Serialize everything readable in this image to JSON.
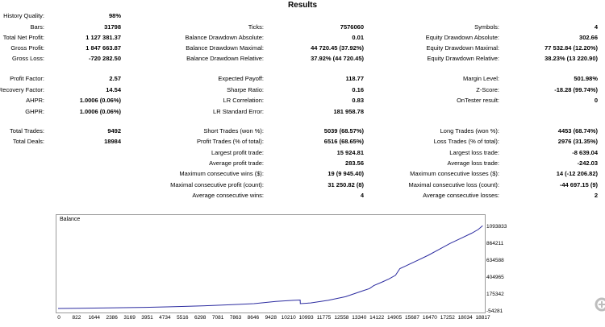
{
  "title": "Results",
  "stats": [
    {
      "label": "History Quality:",
      "value": "98%"
    },
    {
      "label": "Bars:",
      "value": "31798"
    },
    {
      "label": "Ticks:",
      "value": "7576060"
    },
    {
      "label": "Symbols:",
      "value": "4"
    },
    {
      "label": "Total Net Profit:",
      "value": "1 127 381.37"
    },
    {
      "label": "Balance Drawdown Absolute:",
      "value": "0.01"
    },
    {
      "label": "Equity Drawdown Absolute:",
      "value": "302.66"
    },
    {
      "label": "Gross Profit:",
      "value": "1 847 663.87"
    },
    {
      "label": "Balance Drawdown Maximal:",
      "value": "44 720.45 (37.92%)"
    },
    {
      "label": "Equity Drawdown Maximal:",
      "value": "77 532.84 (12.20%)"
    },
    {
      "label": "Gross Loss:",
      "value": "-720 282.50"
    },
    {
      "label": "Balance Drawdown Relative:",
      "value": "37.92% (44 720.45)"
    },
    {
      "label": "Equity Drawdown Relative:",
      "value": "38.23% (13 220.90)"
    },
    {
      "label": "Profit Factor:",
      "value": "2.57"
    },
    {
      "label": "Expected Payoff:",
      "value": "118.77"
    },
    {
      "label": "Margin Level:",
      "value": "501.98%"
    },
    {
      "label": "Recovery Factor:",
      "value": "14.54"
    },
    {
      "label": "Sharpe Ratio:",
      "value": "0.16"
    },
    {
      "label": "Z-Score:",
      "value": "-18.28 (99.74%)"
    },
    {
      "label": "AHPR:",
      "value": "1.0006 (0.06%)"
    },
    {
      "label": "LR Correlation:",
      "value": "0.83"
    },
    {
      "label": "OnTester result:",
      "value": "0"
    },
    {
      "label": "GHPR:",
      "value": "1.0006 (0.06%)"
    },
    {
      "label": "LR Standard Error:",
      "value": "181 958.78"
    },
    {
      "label": "Total Trades:",
      "value": "9492"
    },
    {
      "label": "Short Trades (won %):",
      "value": "5039 (68.57%)"
    },
    {
      "label": "Long Trades (won %):",
      "value": "4453 (68.74%)"
    },
    {
      "label": "Total Deals:",
      "value": "18984"
    },
    {
      "label": "Profit Trades (% of total):",
      "value": "6516 (68.65%)"
    },
    {
      "label": "Loss Trades (% of total):",
      "value": "2976 (31.35%)"
    },
    {
      "label": "Largest profit trade:",
      "value": "15 924.81"
    },
    {
      "label": "Largest loss trade:",
      "value": "-8 639.04"
    },
    {
      "label": "Average profit trade:",
      "value": "283.56"
    },
    {
      "label": "Average loss trade:",
      "value": "-242.03"
    },
    {
      "label": "Maximum consecutive wins ($):",
      "value": "19 (9 945.40)"
    },
    {
      "label": "Maximum consecutive losses ($):",
      "value": "14 (-12 206.82)"
    },
    {
      "label": "Maximal consecutive profit (count):",
      "value": "31 250.82 (8)"
    },
    {
      "label": "Maximal consecutive loss (count):",
      "value": "-44 697.15 (9)"
    },
    {
      "label": "Average consecutive wins:",
      "value": "4"
    },
    {
      "label": "Average consecutive losses:",
      "value": "2"
    }
  ],
  "chart_data": {
    "type": "line",
    "title": "Balance",
    "line_color": "#2c2ca0",
    "ylim": [
      -54281,
      1200000
    ],
    "xlim": [
      0,
      19600
    ],
    "yticks": [
      -54281,
      175342,
      404965,
      634588,
      864211,
      1093833
    ],
    "ytick_labels": [
      "-54281",
      "175342",
      "404965",
      "634588",
      "864211",
      "1093833"
    ],
    "xticks": [
      0,
      822,
      1644,
      2386,
      3169,
      3951,
      4734,
      5516,
      6298,
      7081,
      7863,
      8646,
      9428,
      10210,
      10993,
      11775,
      12558,
      13340,
      14122,
      14905,
      15687,
      16470,
      17252,
      18034,
      18817
    ],
    "xtick_labels": [
      "0",
      "822",
      "1644",
      "2386",
      "3169",
      "3951",
      "4734",
      "5516",
      "6298",
      "7081",
      "7863",
      "8646",
      "9428",
      "10210",
      "10993",
      "11775",
      "12558",
      "13340",
      "14122",
      "14905",
      "15687",
      "16470",
      "17252",
      "18034",
      "18817"
    ],
    "series": [
      {
        "name": "Balance",
        "x": [
          0,
          1000,
          2000,
          3000,
          4000,
          5000,
          6000,
          7000,
          8000,
          9000,
          10000,
          10800,
          11120,
          11125,
          11600,
          12400,
          13200,
          14000,
          14300,
          14500,
          14900,
          15200,
          15500,
          15700,
          16000,
          16500,
          17000,
          17500,
          18000,
          18500,
          19000,
          19300,
          19500
        ],
        "y": [
          0,
          3000,
          7000,
          11000,
          16000,
          22000,
          30000,
          40000,
          52000,
          66000,
          95000,
          110000,
          115000,
          66000,
          76000,
          110000,
          160000,
          240000,
          270000,
          310000,
          360000,
          400000,
          450000,
          540000,
          580000,
          650000,
          720000,
          800000,
          880000,
          950000,
          1020000,
          1070000,
          1120000
        ]
      }
    ]
  },
  "zoom_icon": "zoom-in-icon"
}
